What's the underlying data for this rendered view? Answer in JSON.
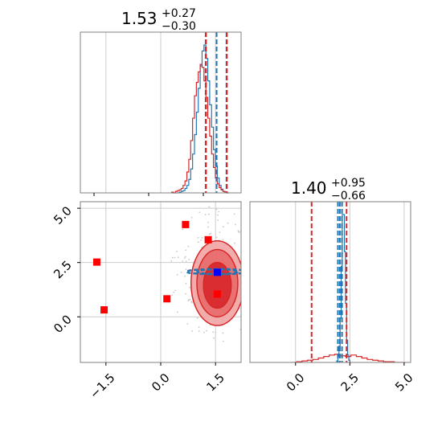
{
  "colors": {
    "blue": "#1f77b4",
    "red": "#d62728",
    "red_fill_outer": "#f2a3a3",
    "red_fill_mid": "#e96a6a",
    "red_fill_inner": "#d7262a",
    "marker_red": "#ff0000",
    "marker_blue": "#0000ff",
    "grid": "#cccccc",
    "spine": "#808080",
    "scatter": "#c8c8c8"
  },
  "chart_data": [
    {
      "panel": "top-left",
      "type": "histogram",
      "title": {
        "value": "1.53",
        "upper": "+0.27",
        "lower": "−0.30"
      },
      "xlim": [
        -2.2,
        2.2
      ],
      "grid": true,
      "bins_start": 0.3,
      "bin_width": 0.052,
      "series": [
        {
          "name": "",
          "color": "blue",
          "counts": [
            0,
            0,
            0,
            0,
            1,
            2,
            3,
            6,
            10,
            18,
            32,
            52,
            78,
            108,
            140,
            170,
            190,
            198,
            180,
            150,
            118,
            88,
            58,
            36,
            20,
            10,
            5,
            2,
            1,
            0
          ]
        },
        {
          "name": "",
          "color": "red",
          "counts": [
            1,
            0,
            2,
            3,
            4,
            6,
            10,
            16,
            28,
            45,
            70,
            100,
            130,
            148,
            162,
            172,
            168,
            150,
            128,
            100,
            76,
            52,
            34,
            20,
            12,
            7,
            4,
            2,
            1,
            0
          ]
        }
      ],
      "quantile_lines": [
        {
          "x": 1.23,
          "color": "blue"
        },
        {
          "x": 1.53,
          "color": "blue"
        },
        {
          "x": 1.8,
          "color": "blue"
        },
        {
          "x": 1.24,
          "color": "red"
        },
        {
          "x": 1.81,
          "color": "red"
        }
      ]
    },
    {
      "panel": "bottom-left",
      "type": "scatter",
      "xlim": [
        -2.2,
        2.2
      ],
      "ylim": [
        -2.1,
        5.3
      ],
      "xticks": [
        "−1.5",
        "0.0",
        "1.5"
      ],
      "xtick_values": [
        -1.5,
        0.0,
        1.5
      ],
      "yticks": [
        "0.0",
        "2.5",
        "5.0"
      ],
      "ytick_values": [
        0.0,
        2.5,
        5.0
      ],
      "grid": true,
      "red_contours": [
        {
          "cx": 1.55,
          "cy": 1.55,
          "rx": 0.72,
          "ry": 1.95,
          "level": "outer"
        },
        {
          "cx": 1.55,
          "cy": 1.55,
          "rx": 0.56,
          "ry": 1.55,
          "level": "mid"
        },
        {
          "cx": 1.55,
          "cy": 1.45,
          "rx": 0.38,
          "ry": 1.05,
          "level": "inner"
        }
      ],
      "blue_contours": [
        {
          "cx": 1.55,
          "cy": 2.08,
          "rx": 0.85,
          "ry": 0.12
        },
        {
          "cx": 1.55,
          "cy": 2.08,
          "rx": 0.55,
          "ry": 0.07
        }
      ],
      "red_markers": [
        {
          "x": -1.75,
          "y": 2.52
        },
        {
          "x": -1.55,
          "y": 0.32
        },
        {
          "x": 0.17,
          "y": 0.83
        },
        {
          "x": 0.68,
          "y": 4.25
        },
        {
          "x": 1.3,
          "y": 3.55
        },
        {
          "x": 1.55,
          "y": 1.05
        }
      ],
      "blue_markers": [
        {
          "x": 1.55,
          "y": 2.05
        }
      ]
    },
    {
      "panel": "bottom-right",
      "type": "histogram",
      "title": {
        "value": "1.40",
        "upper": "+0.95",
        "lower": "−0.66"
      },
      "xlim": [
        -2.1,
        5.3
      ],
      "xticks": [
        "0.0",
        "2.5",
        "5.0"
      ],
      "xtick_values": [
        0.0,
        2.5,
        5.0
      ],
      "grid": true,
      "series": [
        {
          "name": "",
          "color": "red",
          "bins_start": -0.2,
          "bin_width": 0.25,
          "counts": [
            0,
            1,
            2,
            3,
            4,
            6,
            8,
            10,
            11,
            9,
            8,
            10,
            8,
            6,
            4,
            3,
            2,
            1,
            1,
            0,
            0
          ]
        },
        {
          "name": "",
          "color": "blue",
          "bins_start": 1.85,
          "bin_width": 0.05,
          "counts": [
            0,
            2,
            8,
            22,
            60,
            130,
            200,
            200,
            150,
            80,
            30,
            10,
            3,
            0
          ]
        }
      ],
      "quantile_lines": [
        {
          "x": 0.74,
          "color": "red"
        },
        {
          "x": 2.35,
          "color": "red"
        },
        {
          "x": 1.95,
          "color": "blue"
        },
        {
          "x": 2.04,
          "color": "blue"
        },
        {
          "x": 2.14,
          "color": "blue"
        }
      ]
    }
  ]
}
